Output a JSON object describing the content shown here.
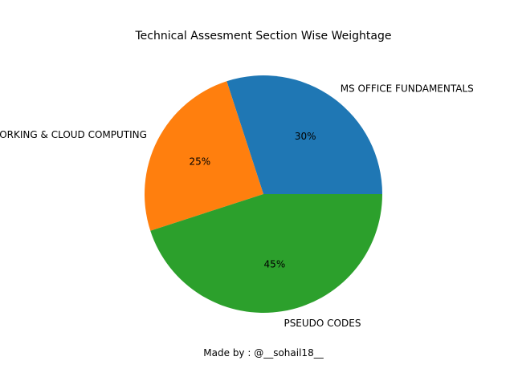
{
  "chart_data": {
    "type": "pie",
    "title": "Technical Assesment Section Wise Weightage",
    "caption": "Made by : @__sohail18__",
    "slices": [
      {
        "label": "MS OFFICE FUNDAMENTALS",
        "value": 30,
        "pct_label": "30%",
        "color": "#1f77b4"
      },
      {
        "label": "NETWORKING & CLOUD COMPUTING",
        "value": 25,
        "pct_label": "25%",
        "color": "#ff7f0e"
      },
      {
        "label": "PSEUDO CODES",
        "value": 45,
        "pct_label": "45%",
        "color": "#2ca02c"
      }
    ],
    "start_angle_deg": 0,
    "direction": "counterclockwise"
  }
}
